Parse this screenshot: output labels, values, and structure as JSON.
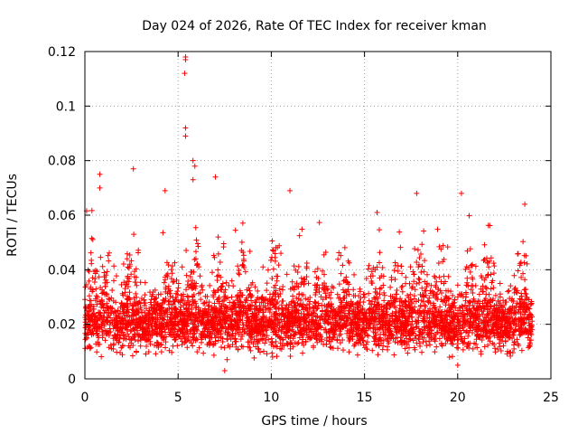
{
  "chart_data": {
    "type": "scatter",
    "title": "Day 024 of 2026, Rate Of TEC Index for receiver kman",
    "xlabel": "GPS time / hours",
    "ylabel": "ROTI / TECUs",
    "xlim": [
      0,
      25
    ],
    "ylim": [
      0,
      0.12
    ],
    "x_ticks": [
      0,
      5,
      10,
      15,
      20,
      25
    ],
    "x_tick_labels": [
      "0",
      "5",
      "10",
      "15",
      "20",
      "25"
    ],
    "y_ticks": [
      0,
      0.02,
      0.04,
      0.06,
      0.08,
      0.1,
      0.12
    ],
    "y_tick_labels": [
      "0",
      "0.02",
      "0.04",
      "0.06",
      "0.08",
      "0.1",
      "0.12"
    ],
    "grid": true,
    "marker": "+",
    "color": "#ff0000",
    "x_data_range": [
      0,
      24
    ],
    "typical_range": [
      0.01,
      0.03
    ],
    "notable_points": [
      {
        "x": 5.4,
        "y": 0.118
      },
      {
        "x": 5.4,
        "y": 0.117
      },
      {
        "x": 5.35,
        "y": 0.112
      },
      {
        "x": 5.4,
        "y": 0.092
      },
      {
        "x": 5.4,
        "y": 0.089
      },
      {
        "x": 5.8,
        "y": 0.08
      },
      {
        "x": 5.9,
        "y": 0.078
      },
      {
        "x": 5.8,
        "y": 0.073
      },
      {
        "x": 2.6,
        "y": 0.077
      },
      {
        "x": 0.8,
        "y": 0.075
      },
      {
        "x": 0.8,
        "y": 0.07
      },
      {
        "x": 4.3,
        "y": 0.069
      },
      {
        "x": 7.0,
        "y": 0.074
      },
      {
        "x": 11.0,
        "y": 0.069
      },
      {
        "x": 17.8,
        "y": 0.068
      },
      {
        "x": 20.2,
        "y": 0.068
      },
      {
        "x": 23.6,
        "y": 0.064
      },
      {
        "x": 7.5,
        "y": 0.003
      },
      {
        "x": 20.0,
        "y": 0.005
      }
    ]
  }
}
